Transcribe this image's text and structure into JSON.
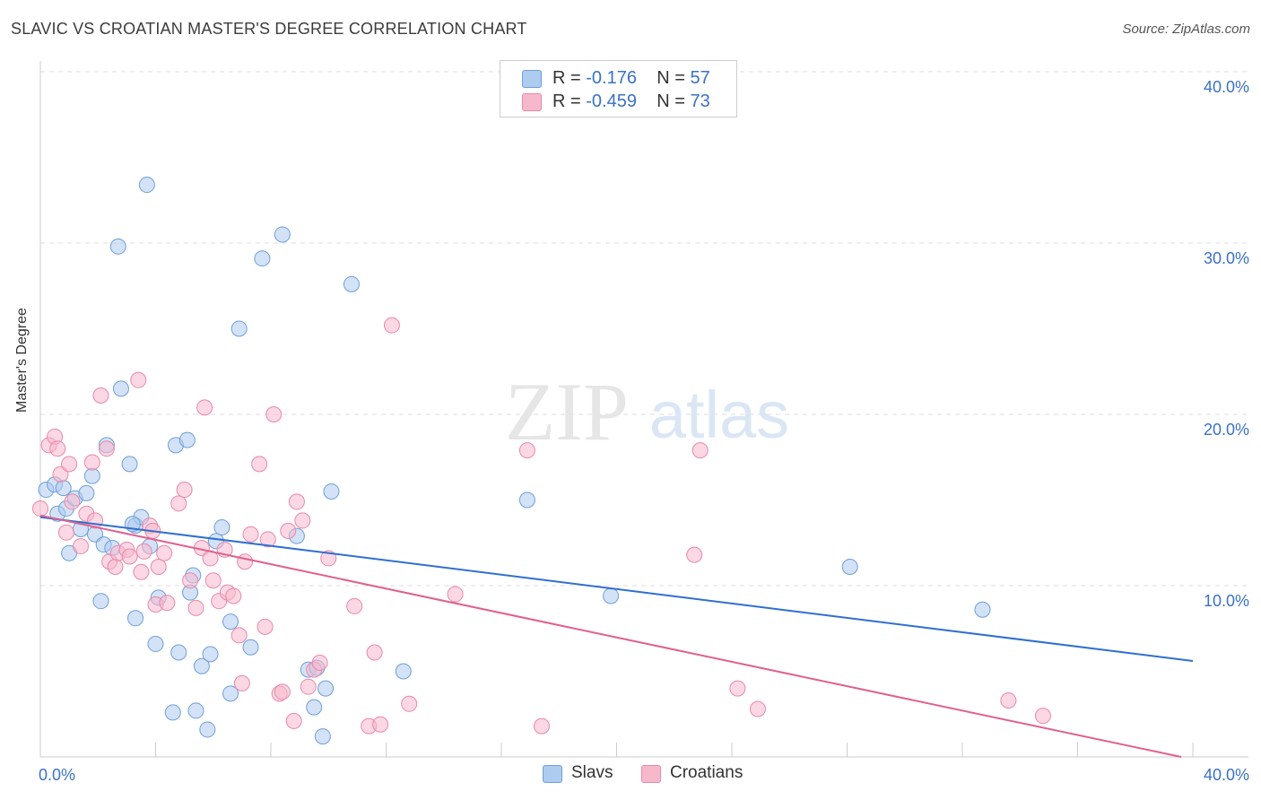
{
  "title": "SLAVIC VS CROATIAN MASTER'S DEGREE CORRELATION CHART",
  "source": "Source: ZipAtlas.com",
  "watermark": {
    "zip": "ZIP",
    "atlas": "atlas"
  },
  "legend": {
    "rows": [
      {
        "r_label": "R = ",
        "r_value": "-0.176",
        "n_label": "N = ",
        "n_value": "57",
        "color": "#aecbf0"
      },
      {
        "r_label": "R = ",
        "r_value": "-0.459",
        "n_label": "N = ",
        "n_value": "73",
        "color": "#f7b8cc"
      }
    ]
  },
  "bottom_legend": [
    {
      "label": "Slavs",
      "color": "#aecbf0"
    },
    {
      "label": "Croatians",
      "color": "#f7b8cc"
    }
  ],
  "chart_data": {
    "type": "scatter",
    "title": "SLAVIC VS CROATIAN MASTER'S DEGREE CORRELATION CHART",
    "xlabel": "",
    "ylabel": "Master's Degree",
    "xlim": [
      0,
      40
    ],
    "ylim": [
      0,
      40
    ],
    "x_tick_labels": [
      "0.0%",
      "40.0%"
    ],
    "y_ticks": [
      10,
      20,
      30,
      40
    ],
    "y_tick_labels": [
      "10.0%",
      "20.0%",
      "30.0%",
      "40.0%"
    ],
    "grid": true,
    "legend_position": "top-center",
    "series": [
      {
        "name": "Slavs",
        "color": "#aecbf0",
        "stroke": "#6f9fd8",
        "trend_color": "#2e6fd0",
        "r": -0.176,
        "n": 57,
        "trend": {
          "x": [
            0,
            40
          ],
          "y": [
            14.0,
            5.6
          ]
        },
        "points": [
          [
            0.2,
            15.6
          ],
          [
            0.5,
            15.9
          ],
          [
            0.8,
            15.7
          ],
          [
            0.6,
            14.2
          ],
          [
            0.9,
            14.5
          ],
          [
            1.2,
            15.1
          ],
          [
            1.6,
            15.4
          ],
          [
            1.8,
            16.4
          ],
          [
            1.0,
            11.9
          ],
          [
            1.4,
            13.3
          ],
          [
            1.9,
            13.0
          ],
          [
            2.2,
            12.4
          ],
          [
            2.5,
            12.2
          ],
          [
            2.3,
            18.2
          ],
          [
            3.1,
            17.1
          ],
          [
            2.8,
            21.5
          ],
          [
            3.7,
            33.4
          ],
          [
            2.7,
            29.8
          ],
          [
            3.3,
            13.5
          ],
          [
            3.5,
            14.0
          ],
          [
            3.8,
            12.3
          ],
          [
            4.1,
            9.3
          ],
          [
            2.1,
            9.1
          ],
          [
            3.3,
            8.1
          ],
          [
            4.0,
            6.6
          ],
          [
            4.8,
            6.1
          ],
          [
            4.7,
            18.2
          ],
          [
            5.1,
            18.5
          ],
          [
            5.2,
            9.6
          ],
          [
            5.3,
            10.6
          ],
          [
            5.6,
            5.3
          ],
          [
            5.9,
            6.0
          ],
          [
            6.1,
            12.6
          ],
          [
            6.3,
            13.4
          ],
          [
            6.6,
            7.9
          ],
          [
            6.9,
            25.0
          ],
          [
            7.3,
            6.4
          ],
          [
            7.7,
            29.1
          ],
          [
            8.4,
            30.5
          ],
          [
            8.9,
            12.9
          ],
          [
            6.6,
            3.7
          ],
          [
            5.4,
            2.7
          ],
          [
            4.6,
            2.6
          ],
          [
            5.8,
            1.6
          ],
          [
            9.3,
            5.1
          ],
          [
            9.6,
            5.2
          ],
          [
            9.9,
            4.0
          ],
          [
            9.5,
            2.9
          ],
          [
            9.8,
            1.2
          ],
          [
            10.1,
            15.5
          ],
          [
            10.8,
            27.6
          ],
          [
            12.6,
            5.0
          ],
          [
            16.9,
            15.0
          ],
          [
            19.8,
            9.4
          ],
          [
            28.1,
            11.1
          ],
          [
            32.7,
            8.6
          ],
          [
            3.2,
            13.6
          ]
        ]
      },
      {
        "name": "Croatians",
        "color": "#f7b8cc",
        "stroke": "#e889a8",
        "trend_color": "#e0608f",
        "r": -0.459,
        "n": 73,
        "trend": {
          "x": [
            0,
            39.6
          ],
          "y": [
            14.1,
            0.0
          ]
        },
        "points": [
          [
            0.0,
            14.5
          ],
          [
            0.3,
            18.2
          ],
          [
            0.5,
            18.7
          ],
          [
            0.6,
            18.0
          ],
          [
            0.7,
            16.5
          ],
          [
            1.0,
            17.1
          ],
          [
            1.1,
            14.9
          ],
          [
            1.4,
            12.3
          ],
          [
            1.6,
            14.2
          ],
          [
            1.8,
            17.2
          ],
          [
            1.9,
            13.8
          ],
          [
            2.1,
            21.1
          ],
          [
            2.3,
            18.0
          ],
          [
            2.4,
            11.4
          ],
          [
            2.6,
            11.1
          ],
          [
            2.7,
            11.9
          ],
          [
            3.0,
            12.1
          ],
          [
            3.1,
            11.7
          ],
          [
            3.4,
            22.0
          ],
          [
            3.5,
            10.8
          ],
          [
            3.6,
            12.0
          ],
          [
            3.8,
            13.5
          ],
          [
            4.0,
            8.9
          ],
          [
            4.1,
            11.1
          ],
          [
            4.3,
            11.9
          ],
          [
            4.4,
            9.0
          ],
          [
            4.8,
            14.8
          ],
          [
            5.0,
            15.6
          ],
          [
            5.2,
            10.3
          ],
          [
            5.4,
            8.7
          ],
          [
            5.6,
            12.2
          ],
          [
            5.7,
            20.4
          ],
          [
            5.9,
            11.6
          ],
          [
            6.0,
            10.3
          ],
          [
            6.2,
            9.1
          ],
          [
            6.4,
            12.1
          ],
          [
            6.5,
            9.6
          ],
          [
            6.7,
            9.4
          ],
          [
            6.9,
            7.1
          ],
          [
            7.0,
            4.3
          ],
          [
            7.1,
            11.4
          ],
          [
            7.3,
            13.0
          ],
          [
            7.6,
            17.1
          ],
          [
            7.8,
            7.6
          ],
          [
            7.9,
            12.7
          ],
          [
            8.1,
            20.0
          ],
          [
            8.3,
            3.7
          ],
          [
            8.4,
            3.8
          ],
          [
            8.6,
            13.2
          ],
          [
            8.8,
            2.1
          ],
          [
            8.9,
            14.9
          ],
          [
            9.1,
            13.8
          ],
          [
            9.3,
            4.1
          ],
          [
            9.5,
            5.1
          ],
          [
            9.7,
            5.5
          ],
          [
            10.0,
            11.6
          ],
          [
            10.9,
            8.8
          ],
          [
            11.4,
            1.8
          ],
          [
            11.6,
            6.1
          ],
          [
            11.8,
            1.9
          ],
          [
            12.2,
            25.2
          ],
          [
            12.8,
            3.1
          ],
          [
            14.4,
            9.5
          ],
          [
            16.9,
            17.9
          ],
          [
            17.4,
            1.8
          ],
          [
            22.7,
            11.8
          ],
          [
            22.9,
            17.9
          ],
          [
            24.2,
            4.0
          ],
          [
            24.9,
            2.8
          ],
          [
            33.6,
            3.3
          ],
          [
            34.8,
            2.4
          ],
          [
            0.9,
            13.1
          ],
          [
            3.9,
            13.2
          ]
        ]
      }
    ]
  }
}
